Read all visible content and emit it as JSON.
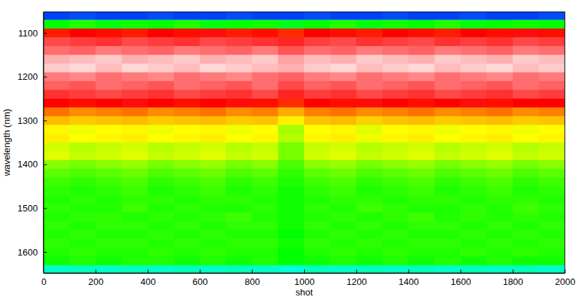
{
  "chart_data": {
    "type": "heatmap",
    "x_label": "shot",
    "y_label": "wavelength (nm)",
    "xlim": [
      0,
      2000
    ],
    "ylim": [
      1052,
      1648
    ],
    "xticks": [
      0,
      200,
      400,
      600,
      800,
      1000,
      1200,
      1400,
      1600,
      1800,
      2000
    ],
    "yticks": [
      1100,
      1200,
      1300,
      1400,
      1500,
      1600
    ],
    "zlim": [
      0,
      1
    ],
    "x": [
      50,
      150,
      250,
      350,
      450,
      550,
      650,
      750,
      850,
      950,
      1050,
      1150,
      1250,
      1350,
      1450,
      1550,
      1650,
      1750,
      1850,
      1950
    ],
    "y": [
      1060,
      1080,
      1100,
      1120,
      1140,
      1160,
      1180,
      1200,
      1220,
      1240,
      1260,
      1280,
      1300,
      1320,
      1340,
      1360,
      1380,
      1400,
      1420,
      1440,
      1460,
      1480,
      1500,
      1520,
      1540,
      1560,
      1580,
      1600,
      1620,
      1640
    ],
    "z": [
      [
        0.05,
        0.06,
        0.05,
        0.05,
        0.06,
        0.05,
        0.05,
        0.06,
        0.05,
        0.05,
        0.06,
        0.05,
        0.05,
        0.06,
        0.05,
        0.05,
        0.06,
        0.05,
        0.05,
        0.06
      ],
      [
        0.38,
        0.4,
        0.37,
        0.39,
        0.38,
        0.4,
        0.37,
        0.38,
        0.39,
        0.36,
        0.38,
        0.4,
        0.37,
        0.39,
        0.38,
        0.4,
        0.37,
        0.38,
        0.39,
        0.38
      ],
      [
        0.78,
        0.8,
        0.79,
        0.78,
        0.8,
        0.79,
        0.81,
        0.78,
        0.79,
        0.77,
        0.8,
        0.79,
        0.78,
        0.8,
        0.79,
        0.78,
        0.8,
        0.79,
        0.81,
        0.79
      ],
      [
        0.86,
        0.85,
        0.84,
        0.86,
        0.85,
        0.84,
        0.86,
        0.85,
        0.84,
        0.83,
        0.85,
        0.86,
        0.84,
        0.85,
        0.86,
        0.84,
        0.85,
        0.84,
        0.86,
        0.85
      ],
      [
        0.89,
        0.88,
        0.9,
        0.89,
        0.88,
        0.9,
        0.89,
        0.88,
        0.9,
        0.87,
        0.89,
        0.88,
        0.9,
        0.89,
        0.88,
        0.9,
        0.89,
        0.88,
        0.9,
        0.89
      ],
      [
        0.94,
        0.95,
        0.96,
        0.94,
        0.95,
        0.96,
        0.94,
        0.95,
        0.96,
        0.93,
        0.95,
        0.94,
        0.96,
        0.95,
        0.94,
        0.96,
        0.95,
        0.94,
        0.96,
        0.95
      ],
      [
        0.96,
        0.97,
        0.95,
        0.97,
        0.96,
        0.95,
        0.97,
        0.96,
        0.95,
        0.94,
        0.96,
        0.97,
        0.95,
        0.96,
        0.97,
        0.95,
        0.96,
        0.97,
        0.95,
        0.96
      ],
      [
        0.9,
        0.91,
        0.89,
        0.9,
        0.91,
        0.89,
        0.9,
        0.91,
        0.89,
        0.88,
        0.9,
        0.91,
        0.89,
        0.9,
        0.91,
        0.89,
        0.9,
        0.91,
        0.89,
        0.9
      ],
      [
        0.88,
        0.87,
        0.89,
        0.88,
        0.87,
        0.89,
        0.88,
        0.87,
        0.89,
        0.86,
        0.88,
        0.87,
        0.89,
        0.88,
        0.87,
        0.89,
        0.88,
        0.87,
        0.89,
        0.88
      ],
      [
        0.84,
        0.85,
        0.86,
        0.85,
        0.84,
        0.86,
        0.85,
        0.84,
        0.86,
        0.83,
        0.85,
        0.84,
        0.86,
        0.85,
        0.84,
        0.86,
        0.85,
        0.84,
        0.86,
        0.85
      ],
      [
        0.8,
        0.79,
        0.8,
        0.81,
        0.8,
        0.79,
        0.8,
        0.81,
        0.79,
        0.77,
        0.8,
        0.79,
        0.81,
        0.8,
        0.79,
        0.8,
        0.81,
        0.79,
        0.8,
        0.8
      ],
      [
        0.72,
        0.7,
        0.71,
        0.72,
        0.7,
        0.71,
        0.72,
        0.7,
        0.71,
        0.66,
        0.71,
        0.72,
        0.7,
        0.71,
        0.72,
        0.7,
        0.71,
        0.72,
        0.7,
        0.71
      ],
      [
        0.64,
        0.62,
        0.63,
        0.64,
        0.62,
        0.63,
        0.64,
        0.62,
        0.63,
        0.57,
        0.63,
        0.64,
        0.61,
        0.63,
        0.64,
        0.62,
        0.63,
        0.64,
        0.62,
        0.63
      ],
      [
        0.56,
        0.54,
        0.55,
        0.56,
        0.54,
        0.55,
        0.56,
        0.54,
        0.55,
        0.49,
        0.55,
        0.56,
        0.53,
        0.55,
        0.56,
        0.54,
        0.55,
        0.56,
        0.54,
        0.55
      ],
      [
        0.57,
        0.55,
        0.56,
        0.57,
        0.55,
        0.56,
        0.57,
        0.55,
        0.56,
        0.5,
        0.56,
        0.57,
        0.54,
        0.56,
        0.57,
        0.55,
        0.56,
        0.57,
        0.55,
        0.56
      ],
      [
        0.52,
        0.5,
        0.51,
        0.52,
        0.5,
        0.51,
        0.52,
        0.5,
        0.51,
        0.46,
        0.51,
        0.52,
        0.5,
        0.51,
        0.52,
        0.5,
        0.51,
        0.52,
        0.5,
        0.51
      ],
      [
        0.53,
        0.51,
        0.52,
        0.53,
        0.51,
        0.52,
        0.53,
        0.51,
        0.52,
        0.46,
        0.52,
        0.53,
        0.51,
        0.52,
        0.53,
        0.51,
        0.52,
        0.53,
        0.51,
        0.52
      ],
      [
        0.47,
        0.46,
        0.47,
        0.48,
        0.46,
        0.47,
        0.48,
        0.46,
        0.47,
        0.43,
        0.47,
        0.48,
        0.46,
        0.47,
        0.48,
        0.46,
        0.47,
        0.48,
        0.46,
        0.47
      ],
      [
        0.44,
        0.43,
        0.44,
        0.45,
        0.43,
        0.44,
        0.45,
        0.43,
        0.44,
        0.41,
        0.44,
        0.45,
        0.43,
        0.44,
        0.45,
        0.43,
        0.44,
        0.45,
        0.43,
        0.44
      ],
      [
        0.42,
        0.41,
        0.42,
        0.43,
        0.41,
        0.42,
        0.43,
        0.41,
        0.42,
        0.4,
        0.42,
        0.43,
        0.41,
        0.42,
        0.43,
        0.41,
        0.42,
        0.43,
        0.41,
        0.42
      ],
      [
        0.41,
        0.4,
        0.41,
        0.42,
        0.4,
        0.41,
        0.42,
        0.4,
        0.41,
        0.39,
        0.41,
        0.42,
        0.4,
        0.41,
        0.42,
        0.4,
        0.41,
        0.42,
        0.4,
        0.41
      ],
      [
        0.4,
        0.41,
        0.4,
        0.41,
        0.41,
        0.4,
        0.41,
        0.41,
        0.4,
        0.39,
        0.4,
        0.41,
        0.41,
        0.4,
        0.41,
        0.41,
        0.4,
        0.41,
        0.41,
        0.4
      ],
      [
        0.41,
        0.4,
        0.4,
        0.42,
        0.4,
        0.41,
        0.4,
        0.4,
        0.41,
        0.39,
        0.41,
        0.4,
        0.42,
        0.41,
        0.4,
        0.4,
        0.41,
        0.4,
        0.42,
        0.41
      ],
      [
        0.4,
        0.41,
        0.41,
        0.4,
        0.41,
        0.4,
        0.41,
        0.42,
        0.4,
        0.39,
        0.4,
        0.41,
        0.4,
        0.41,
        0.42,
        0.4,
        0.41,
        0.4,
        0.41,
        0.4
      ],
      [
        0.41,
        0.4,
        0.41,
        0.41,
        0.4,
        0.41,
        0.4,
        0.41,
        0.41,
        0.39,
        0.41,
        0.4,
        0.41,
        0.4,
        0.41,
        0.41,
        0.4,
        0.41,
        0.4,
        0.41
      ],
      [
        0.4,
        0.41,
        0.4,
        0.4,
        0.41,
        0.4,
        0.41,
        0.4,
        0.4,
        0.38,
        0.4,
        0.41,
        0.4,
        0.41,
        0.4,
        0.4,
        0.41,
        0.4,
        0.41,
        0.4
      ],
      [
        0.41,
        0.4,
        0.41,
        0.41,
        0.4,
        0.41,
        0.4,
        0.41,
        0.41,
        0.39,
        0.41,
        0.4,
        0.41,
        0.4,
        0.41,
        0.41,
        0.4,
        0.41,
        0.4,
        0.41
      ],
      [
        0.4,
        0.41,
        0.4,
        0.4,
        0.41,
        0.4,
        0.41,
        0.4,
        0.4,
        0.38,
        0.4,
        0.41,
        0.4,
        0.41,
        0.4,
        0.4,
        0.41,
        0.4,
        0.41,
        0.4
      ],
      [
        0.39,
        0.4,
        0.39,
        0.4,
        0.4,
        0.39,
        0.4,
        0.39,
        0.4,
        0.38,
        0.39,
        0.4,
        0.39,
        0.4,
        0.39,
        0.4,
        0.39,
        0.4,
        0.39,
        0.39
      ],
      [
        0.24,
        0.25,
        0.24,
        0.25,
        0.24,
        0.25,
        0.24,
        0.25,
        0.24,
        0.23,
        0.25,
        0.24,
        0.25,
        0.24,
        0.25,
        0.24,
        0.25,
        0.24,
        0.25,
        0.24
      ]
    ]
  }
}
